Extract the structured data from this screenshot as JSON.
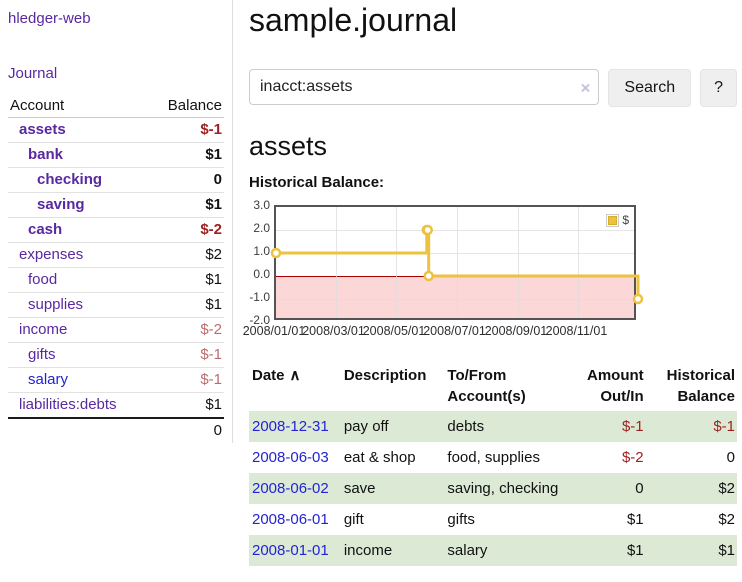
{
  "sidebar": {
    "brand": "hledger-web",
    "journal_link": "Journal",
    "accounts": {
      "headers": [
        "Account",
        "Balance"
      ],
      "rows": [
        {
          "name": "assets",
          "balance": "$-1",
          "level": 1,
          "bold": true,
          "name_color": "purple",
          "balance_tone": "neg-strong"
        },
        {
          "name": "bank",
          "balance": "$1",
          "level": 2,
          "bold": true,
          "name_color": "purple",
          "balance_tone": "normal"
        },
        {
          "name": "checking",
          "balance": "0",
          "level": 3,
          "bold": true,
          "name_color": "purple",
          "balance_tone": "normal"
        },
        {
          "name": "saving",
          "balance": "$1",
          "level": 3,
          "bold": true,
          "name_color": "purple",
          "balance_tone": "normal"
        },
        {
          "name": "cash",
          "balance": "$-2",
          "level": 2,
          "bold": true,
          "name_color": "purple",
          "balance_tone": "neg-strong"
        },
        {
          "name": "expenses",
          "balance": "$2",
          "level": 1,
          "bold": false,
          "name_color": "purple",
          "balance_tone": "normal"
        },
        {
          "name": "food",
          "balance": "$1",
          "level": 2,
          "bold": false,
          "name_color": "purple",
          "balance_tone": "normal"
        },
        {
          "name": "supplies",
          "balance": "$1",
          "level": 2,
          "bold": false,
          "name_color": "purple",
          "balance_tone": "normal"
        },
        {
          "name": "income",
          "balance": "$-2",
          "level": 1,
          "bold": false,
          "name_color": "purple",
          "balance_tone": "neg-light"
        },
        {
          "name": "gifts",
          "balance": "$-1",
          "level": 2,
          "bold": false,
          "name_color": "purple",
          "balance_tone": "neg-light"
        },
        {
          "name": "salary",
          "balance": "$-1",
          "level": 2,
          "bold": false,
          "name_color": "blue",
          "balance_tone": "neg-light"
        },
        {
          "name": "liabilities:debts",
          "balance": "$1",
          "level": 1,
          "bold": false,
          "name_color": "purple",
          "balance_tone": "normal"
        }
      ],
      "total": "0"
    }
  },
  "main": {
    "title": "sample.journal",
    "search": {
      "value": "inacct:assets",
      "clear_icon": "×",
      "search_label": "Search",
      "help_label": "?"
    },
    "account_heading": "assets",
    "register": {
      "headers": [
        "Date",
        "Description",
        "To/From Account(s)",
        "Amount Out/In",
        "Historical Balance"
      ],
      "sort_indicator": "∧",
      "rows": [
        {
          "date": "2008-12-31",
          "description": "pay off",
          "accounts": "debts",
          "amount": "$-1",
          "amount_neg": true,
          "balance": "$-1",
          "balance_neg": true
        },
        {
          "date": "2008-06-03",
          "description": "eat & shop",
          "accounts": "food, supplies",
          "amount": "$-2",
          "amount_neg": true,
          "balance": "0",
          "balance_neg": false
        },
        {
          "date": "2008-06-02",
          "description": "save",
          "accounts": "saving, checking",
          "amount": "0",
          "amount_neg": false,
          "balance": "$2",
          "balance_neg": false
        },
        {
          "date": "2008-06-01",
          "description": "gift",
          "accounts": "gifts",
          "amount": "$1",
          "amount_neg": false,
          "balance": "$2",
          "balance_neg": false
        },
        {
          "date": "2008-01-01",
          "description": "income",
          "accounts": "salary",
          "amount": "$1",
          "amount_neg": false,
          "balance": "$1",
          "balance_neg": false
        }
      ]
    }
  },
  "chart_data": {
    "type": "line",
    "title": "Historical Balance:",
    "step": true,
    "series": [
      {
        "name": "$",
        "color": "#EDC240",
        "x": [
          "2008-01-01",
          "2008-06-01",
          "2008-06-02",
          "2008-06-03",
          "2008-12-31"
        ],
        "y": [
          1,
          2,
          2,
          0,
          -1
        ]
      }
    ],
    "x_start": "2008-01-01",
    "x_end": "2008-12-31",
    "xticks": [
      "2008/01/01",
      "2008/03/01",
      "2008/05/01",
      "2008/07/01",
      "2008/09/01",
      "2008/11/01"
    ],
    "yticks": [
      "3.0",
      "2.0",
      "1.0",
      "0.0",
      "-1.0",
      "-2.0"
    ],
    "ylim": [
      -2,
      3
    ],
    "grid": true,
    "negative_region_shaded": true,
    "legend_position": "top-right"
  },
  "colors": {
    "link_purple": "#5a28a0",
    "link_blue": "#2323d6",
    "negative_strong": "#9e1f1f",
    "negative_light": "#bc6c6c",
    "stripe_green": "#dcead5",
    "series_yellow": "#EDC240",
    "negative_region_pink": "#fbd7d7",
    "zero_line_red": "#a80000"
  }
}
